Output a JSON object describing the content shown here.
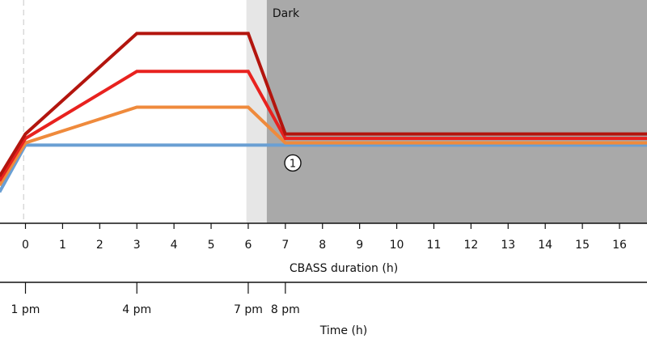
{
  "chart_data": {
    "type": "line",
    "xlabel": "CBASS duration (h)",
    "xlabel_secondary": "Time (h)",
    "x_ticks": [
      "0",
      "1",
      "2",
      "3",
      "4",
      "5",
      "6",
      "7",
      "8",
      "9",
      "10",
      "11",
      "12",
      "13",
      "14",
      "15",
      "16"
    ],
    "secondary_ticks": [
      {
        "x": 0,
        "label": "1 pm"
      },
      {
        "x": 3,
        "label": "4 pm"
      },
      {
        "x": 6,
        "label": "7 pm"
      },
      {
        "x": 7,
        "label": "8 pm"
      }
    ],
    "xlim": [
      -0.7,
      16.8
    ],
    "ylim": [
      0,
      10
    ],
    "regions": [
      {
        "type": "transition",
        "x_start": 5.95,
        "x_end": 6.5,
        "color": "#e6e6e6",
        "label": ""
      },
      {
        "type": "dark",
        "x_start": 6.5,
        "x_end": 16.8,
        "color": "#a9a9a9",
        "label": "Dark"
      }
    ],
    "reference_line_x": -0.05,
    "marker": {
      "x": 7.2,
      "y": 2.7,
      "label": "1"
    },
    "series": [
      {
        "color": "#6a9fd3",
        "points": [
          [
            -0.7,
            1.4
          ],
          [
            0,
            3.5
          ],
          [
            16.8,
            3.5
          ]
        ]
      },
      {
        "color": "#ef8a3c",
        "points": [
          [
            -0.7,
            1.7
          ],
          [
            0,
            3.6
          ],
          [
            3,
            5.2
          ],
          [
            6,
            5.2
          ],
          [
            7,
            3.6
          ],
          [
            16.8,
            3.6
          ]
        ]
      },
      {
        "color": "#e8221f",
        "points": [
          [
            -0.7,
            1.9
          ],
          [
            0,
            3.8
          ],
          [
            3,
            6.8
          ],
          [
            6,
            6.8
          ],
          [
            7,
            3.8
          ],
          [
            16.8,
            3.8
          ]
        ]
      },
      {
        "color": "#b3150e",
        "points": [
          [
            -0.7,
            2.1
          ],
          [
            0,
            4.0
          ],
          [
            3,
            8.5
          ],
          [
            6,
            8.5
          ],
          [
            7,
            4.0
          ],
          [
            16.8,
            4.0
          ]
        ]
      }
    ],
    "grid": false
  }
}
